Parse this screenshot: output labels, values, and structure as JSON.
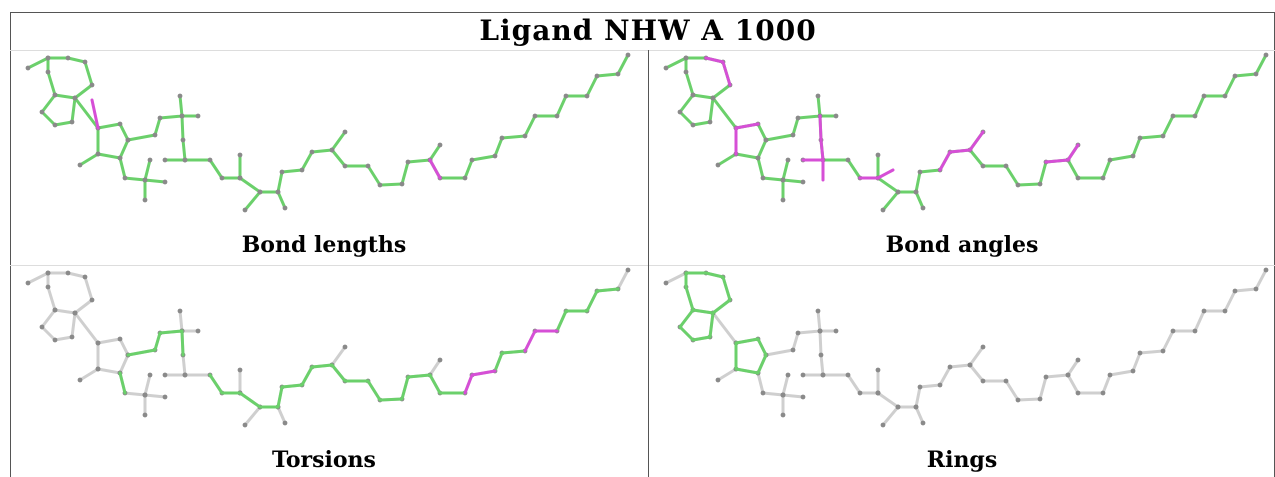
{
  "header": {
    "title": "Ligand NHW A 1000"
  },
  "panels": [
    {
      "label": "Bond lengths"
    },
    {
      "label": "Bond angles"
    },
    {
      "label": "Torsions"
    },
    {
      "label": "Rings"
    }
  ]
}
